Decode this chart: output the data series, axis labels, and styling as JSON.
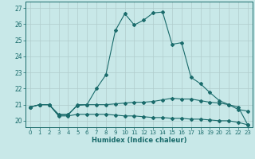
{
  "xlabel": "Humidex (Indice chaleur)",
  "background_color": "#c8e8e8",
  "grid_color": "#b0cccc",
  "line_color": "#1a6b6b",
  "xlim": [
    -0.5,
    23.5
  ],
  "ylim": [
    19.6,
    27.4
  ],
  "yticks": [
    20,
    21,
    22,
    23,
    24,
    25,
    26,
    27
  ],
  "xticks": [
    0,
    1,
    2,
    3,
    4,
    5,
    6,
    7,
    8,
    9,
    10,
    11,
    12,
    13,
    14,
    15,
    16,
    17,
    18,
    19,
    20,
    21,
    22,
    23
  ],
  "line1_x": [
    0,
    1,
    2,
    3,
    4,
    5,
    6,
    7,
    8,
    9,
    10,
    11,
    12,
    13,
    14,
    15,
    16,
    17,
    18,
    19,
    20,
    21,
    22,
    23
  ],
  "line1_y": [
    20.85,
    21.0,
    21.0,
    20.4,
    20.4,
    20.95,
    21.0,
    22.0,
    22.85,
    25.6,
    26.65,
    25.95,
    26.25,
    26.7,
    26.75,
    24.75,
    24.85,
    22.7,
    22.3,
    21.75,
    21.25,
    21.0,
    20.7,
    20.6
  ],
  "line2_x": [
    0,
    1,
    2,
    3,
    4,
    5,
    6,
    7,
    8,
    9,
    10,
    11,
    12,
    13,
    14,
    15,
    16,
    17,
    18,
    19,
    20,
    21,
    22,
    23
  ],
  "line2_y": [
    20.85,
    21.0,
    21.0,
    20.35,
    20.35,
    21.0,
    21.0,
    21.0,
    21.0,
    21.05,
    21.1,
    21.15,
    21.15,
    21.2,
    21.3,
    21.4,
    21.35,
    21.35,
    21.25,
    21.15,
    21.1,
    21.0,
    20.85,
    19.75
  ],
  "line3_x": [
    0,
    1,
    2,
    3,
    4,
    5,
    6,
    7,
    8,
    9,
    10,
    11,
    12,
    13,
    14,
    15,
    16,
    17,
    18,
    19,
    20,
    21,
    22,
    23
  ],
  "line3_y": [
    20.85,
    21.0,
    21.0,
    20.3,
    20.3,
    20.4,
    20.4,
    20.4,
    20.4,
    20.35,
    20.3,
    20.3,
    20.25,
    20.2,
    20.2,
    20.15,
    20.15,
    20.1,
    20.1,
    20.05,
    20.0,
    20.0,
    19.9,
    19.75
  ]
}
